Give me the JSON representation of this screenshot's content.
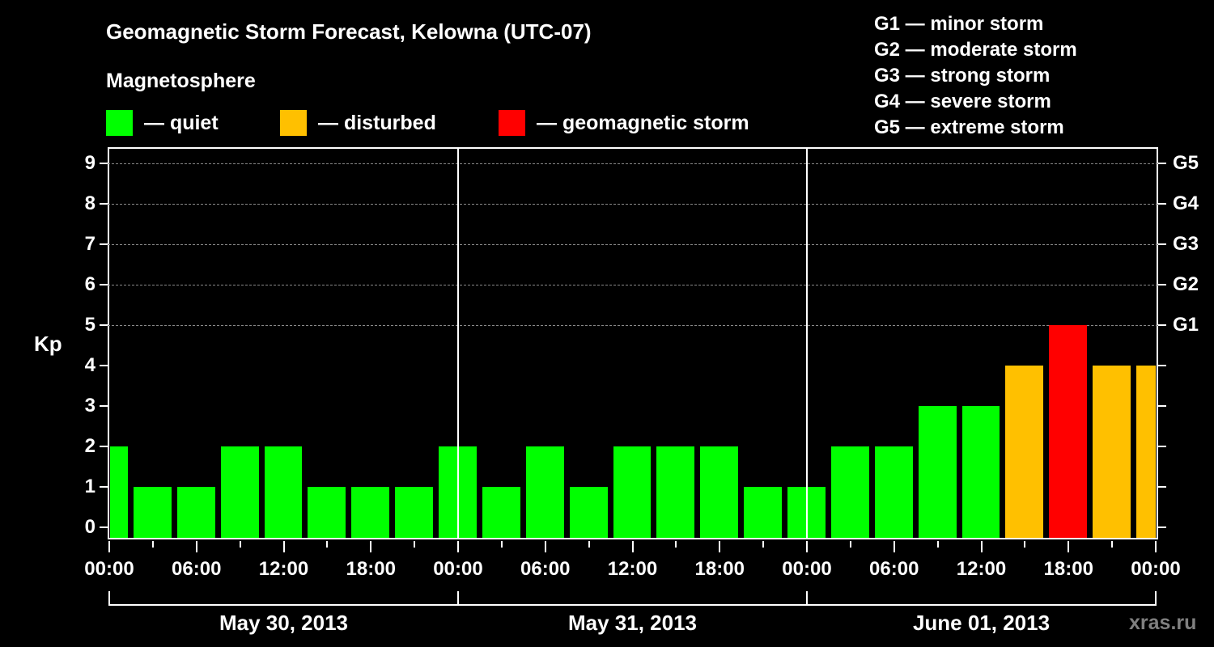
{
  "header": {
    "title": "Geomagnetic Storm Forecast, Kelowna (UTC-07)",
    "subtitle": "Magnetosphere"
  },
  "legend": [
    {
      "label": "— quiet",
      "color": "#00ff00"
    },
    {
      "label": "— disturbed",
      "color": "#ffc000"
    },
    {
      "label": "— geomagnetic storm",
      "color": "#ff0000"
    }
  ],
  "g_scale": [
    "G1 — minor storm",
    "G2 — moderate storm",
    "G3 — strong storm",
    "G4 — severe storm",
    "G5 — extreme storm"
  ],
  "watermark": "xras.ru",
  "chart_data": {
    "type": "bar",
    "title": "Geomagnetic Storm Forecast, Kelowna (UTC-07)",
    "ylabel": "Kp",
    "xlabel": "",
    "ylim": [
      0,
      9
    ],
    "y_ticks": [
      "0",
      "1",
      "2",
      "3",
      "4",
      "5",
      "6",
      "7",
      "8",
      "9"
    ],
    "y2_ticks": [
      {
        "kp": 5,
        "label": "G1"
      },
      {
        "kp": 6,
        "label": "G2"
      },
      {
        "kp": 7,
        "label": "G3"
      },
      {
        "kp": 8,
        "label": "G4"
      },
      {
        "kp": 9,
        "label": "G5"
      }
    ],
    "x_tick_labels": [
      "00:00",
      "06:00",
      "12:00",
      "18:00",
      "00:00",
      "06:00",
      "12:00",
      "18:00",
      "00:00",
      "06:00",
      "12:00",
      "18:00",
      "00:00"
    ],
    "date_labels": [
      "May 30, 2013",
      "May 31, 2013",
      "June 01, 2013"
    ],
    "grid": "dashed horizontal at Kp 5-9",
    "interval_hours": 3,
    "categories": [
      "May 30 00:00",
      "May 30 03:00",
      "May 30 06:00",
      "May 30 09:00",
      "May 30 12:00",
      "May 30 15:00",
      "May 30 18:00",
      "May 30 21:00",
      "May 31 00:00",
      "May 31 03:00",
      "May 31 06:00",
      "May 31 09:00",
      "May 31 12:00",
      "May 31 15:00",
      "May 31 18:00",
      "May 31 21:00",
      "Jun 01 00:00",
      "Jun 01 03:00",
      "Jun 01 06:00",
      "Jun 01 09:00",
      "Jun 01 12:00",
      "Jun 01 15:00",
      "Jun 01 18:00",
      "Jun 01 21:00",
      "Jun 02 00:00"
    ],
    "values": [
      2,
      1,
      1,
      2,
      2,
      1,
      1,
      1,
      2,
      1,
      2,
      1,
      2,
      2,
      2,
      1,
      1,
      2,
      2,
      3,
      3,
      4,
      5,
      4,
      4
    ],
    "status": [
      "quiet",
      "quiet",
      "quiet",
      "quiet",
      "quiet",
      "quiet",
      "quiet",
      "quiet",
      "quiet",
      "quiet",
      "quiet",
      "quiet",
      "quiet",
      "quiet",
      "quiet",
      "quiet",
      "quiet",
      "quiet",
      "quiet",
      "quiet",
      "quiet",
      "disturbed",
      "storm",
      "disturbed",
      "disturbed"
    ],
    "colors": {
      "quiet": "#00ff00",
      "disturbed": "#ffc000",
      "storm": "#ff0000"
    }
  }
}
